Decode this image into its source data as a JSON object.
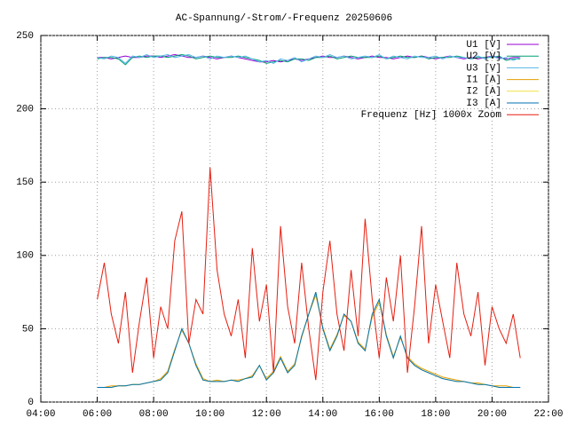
{
  "chart_data": {
    "type": "line",
    "title": "AC-Spannung/-Strom/-Frequenz 20250606",
    "xlim": [
      4,
      22
    ],
    "xticks": [
      {
        "value": 4,
        "label": "04:00"
      },
      {
        "value": 6,
        "label": "06:00"
      },
      {
        "value": 8,
        "label": "08:00"
      },
      {
        "value": 10,
        "label": "10:00"
      },
      {
        "value": 12,
        "label": "12:00"
      },
      {
        "value": 14,
        "label": "14:00"
      },
      {
        "value": 16,
        "label": "16:00"
      },
      {
        "value": 18,
        "label": "18:00"
      },
      {
        "value": 20,
        "label": "20:00"
      },
      {
        "value": 22,
        "label": "22:00"
      }
    ],
    "ylim": [
      0,
      250
    ],
    "yticks": [
      0,
      50,
      100,
      150,
      200,
      250
    ],
    "grid": true,
    "legend": "top-right",
    "x": [
      6,
      6.25,
      6.5,
      6.75,
      7,
      7.25,
      7.5,
      7.75,
      8,
      8.25,
      8.5,
      8.75,
      9,
      9.25,
      9.5,
      9.75,
      10,
      10.25,
      10.5,
      10.75,
      11,
      11.25,
      11.5,
      11.75,
      12,
      12.25,
      12.5,
      12.75,
      13,
      13.25,
      13.5,
      13.75,
      14,
      14.25,
      14.5,
      14.75,
      15,
      15.25,
      15.5,
      15.75,
      16,
      16.25,
      16.5,
      16.75,
      17,
      17.25,
      17.5,
      17.75,
      18,
      18.25,
      18.5,
      18.75,
      19,
      19.25,
      19.5,
      19.75,
      20,
      20.25,
      20.5,
      20.75,
      21
    ],
    "series": [
      {
        "name": "U1 [V]",
        "color": "#9400d3",
        "values": [
          235,
          235,
          234,
          235,
          236,
          235,
          235,
          236,
          236,
          235,
          236,
          237,
          236,
          235,
          235,
          236,
          235,
          234,
          235,
          236,
          235,
          234,
          233,
          232,
          232,
          233,
          232,
          233,
          234,
          233,
          234,
          235,
          236,
          235,
          235,
          236,
          235,
          234,
          235,
          236,
          235,
          235,
          234,
          235,
          236,
          235,
          236,
          235,
          234,
          235,
          236,
          235,
          234,
          235,
          234,
          235,
          236,
          235,
          234,
          235,
          235
        ]
      },
      {
        "name": "U2 [V]",
        "color": "#009e73",
        "values": [
          234,
          235,
          235,
          234,
          230,
          235,
          236,
          235,
          236,
          236,
          235,
          236,
          237,
          236,
          234,
          235,
          236,
          235,
          235,
          235,
          236,
          235,
          234,
          233,
          231,
          232,
          233,
          232,
          234,
          234,
          233,
          235,
          235,
          236,
          234,
          235,
          236,
          235,
          235,
          235,
          236,
          234,
          235,
          236,
          235,
          235,
          236,
          234,
          235,
          235,
          235,
          236,
          235,
          234,
          235,
          235,
          235,
          236,
          233,
          234,
          234
        ]
      },
      {
        "name": "U3 [V]",
        "color": "#56b4e9",
        "values": [
          235,
          234,
          236,
          235,
          231,
          236,
          235,
          237,
          235,
          236,
          237,
          235,
          236,
          237,
          235,
          236,
          234,
          236,
          235,
          236,
          235,
          236,
          234,
          232,
          233,
          231,
          234,
          233,
          235,
          232,
          234,
          236,
          235,
          237,
          235,
          236,
          234,
          235,
          236,
          235,
          237,
          234,
          236,
          235,
          234,
          236,
          235,
          235,
          236,
          234,
          236,
          235,
          235,
          234,
          236,
          234,
          236,
          234,
          235,
          233,
          235
        ]
      },
      {
        "name": "I1 [A]",
        "color": "#e69f00",
        "values": [
          10,
          10,
          11,
          11,
          11,
          12,
          12,
          13,
          14,
          16,
          21,
          36,
          49,
          40,
          26,
          16,
          14,
          15,
          14,
          15,
          15,
          16,
          18,
          25,
          16,
          21,
          31,
          21,
          26,
          44,
          60,
          73,
          51,
          36,
          46,
          59,
          55,
          41,
          36,
          58,
          68,
          46,
          31,
          44,
          31,
          26,
          23,
          21,
          19,
          17,
          16,
          15,
          14,
          13,
          13,
          12,
          11,
          11,
          11,
          10,
          10
        ]
      },
      {
        "name": "I2 [A]",
        "color": "#f0e442",
        "values": [
          10,
          10,
          10,
          11,
          11,
          12,
          12,
          13,
          14,
          15,
          20,
          35,
          50,
          40,
          25,
          15,
          14,
          14,
          14,
          15,
          14,
          16,
          17,
          25,
          15,
          20,
          30,
          20,
          25,
          45,
          60,
          75,
          50,
          35,
          45,
          60,
          55,
          40,
          35,
          60,
          70,
          45,
          30,
          45,
          30,
          25,
          22,
          20,
          18,
          16,
          15,
          14,
          14,
          13,
          12,
          12,
          11,
          10,
          10,
          10,
          10
        ]
      },
      {
        "name": "I3 [A]",
        "color": "#0072b2",
        "values": [
          10,
          10,
          10,
          11,
          11,
          12,
          12,
          13,
          14,
          15,
          20,
          35,
          50,
          40,
          25,
          15,
          14,
          14,
          14,
          15,
          14,
          16,
          17,
          25,
          15,
          20,
          30,
          20,
          25,
          45,
          60,
          75,
          50,
          35,
          45,
          60,
          55,
          40,
          35,
          60,
          70,
          45,
          30,
          45,
          30,
          25,
          22,
          20,
          18,
          16,
          15,
          14,
          14,
          13,
          12,
          12,
          11,
          10,
          10,
          10,
          10
        ]
      },
      {
        "name": "Frequenz [Hz] 1000x Zoom",
        "color": "#e51e10",
        "values": [
          70,
          95,
          60,
          40,
          75,
          20,
          55,
          85,
          30,
          65,
          50,
          110,
          130,
          40,
          70,
          60,
          160,
          90,
          60,
          45,
          70,
          30,
          105,
          55,
          80,
          20,
          120,
          65,
          40,
          95,
          50,
          15,
          75,
          110,
          60,
          35,
          90,
          45,
          125,
          70,
          30,
          85,
          55,
          100,
          20,
          65,
          120,
          40,
          80,
          55,
          30,
          95,
          60,
          45,
          75,
          25,
          65,
          50,
          40,
          60,
          30
        ]
      }
    ]
  }
}
